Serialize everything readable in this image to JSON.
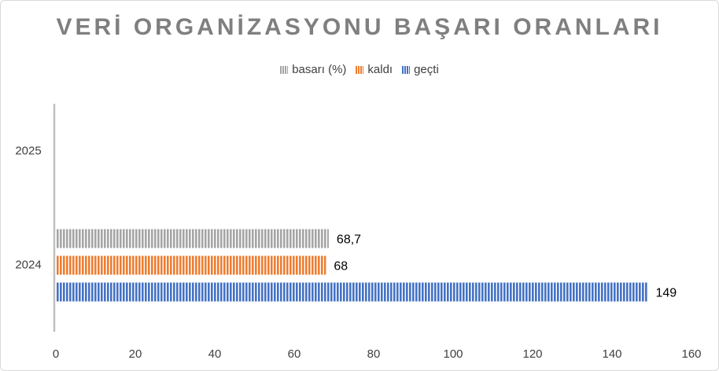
{
  "chart_data": {
    "type": "bar",
    "orientation": "horizontal",
    "title": "VERİ ORGANİZASYONU BAŞARI ORANLARI",
    "categories": [
      "2024",
      "2025"
    ],
    "series": [
      {
        "name": "geçti",
        "values": [
          149,
          null
        ],
        "color": "#4472c4"
      },
      {
        "name": "kaldı",
        "values": [
          68,
          null
        ],
        "color": "#ed7d31"
      },
      {
        "name": "basarı (%)",
        "values": [
          68.7,
          null
        ],
        "color": "#a5a5a5"
      }
    ],
    "data_labels": [
      "149",
      "68",
      "68,7"
    ],
    "xlim": [
      0,
      160
    ],
    "x_ticks": [
      "0",
      "20",
      "40",
      "60",
      "80",
      "100",
      "120",
      "140",
      "160"
    ],
    "legend_position": "top",
    "grid": false
  }
}
